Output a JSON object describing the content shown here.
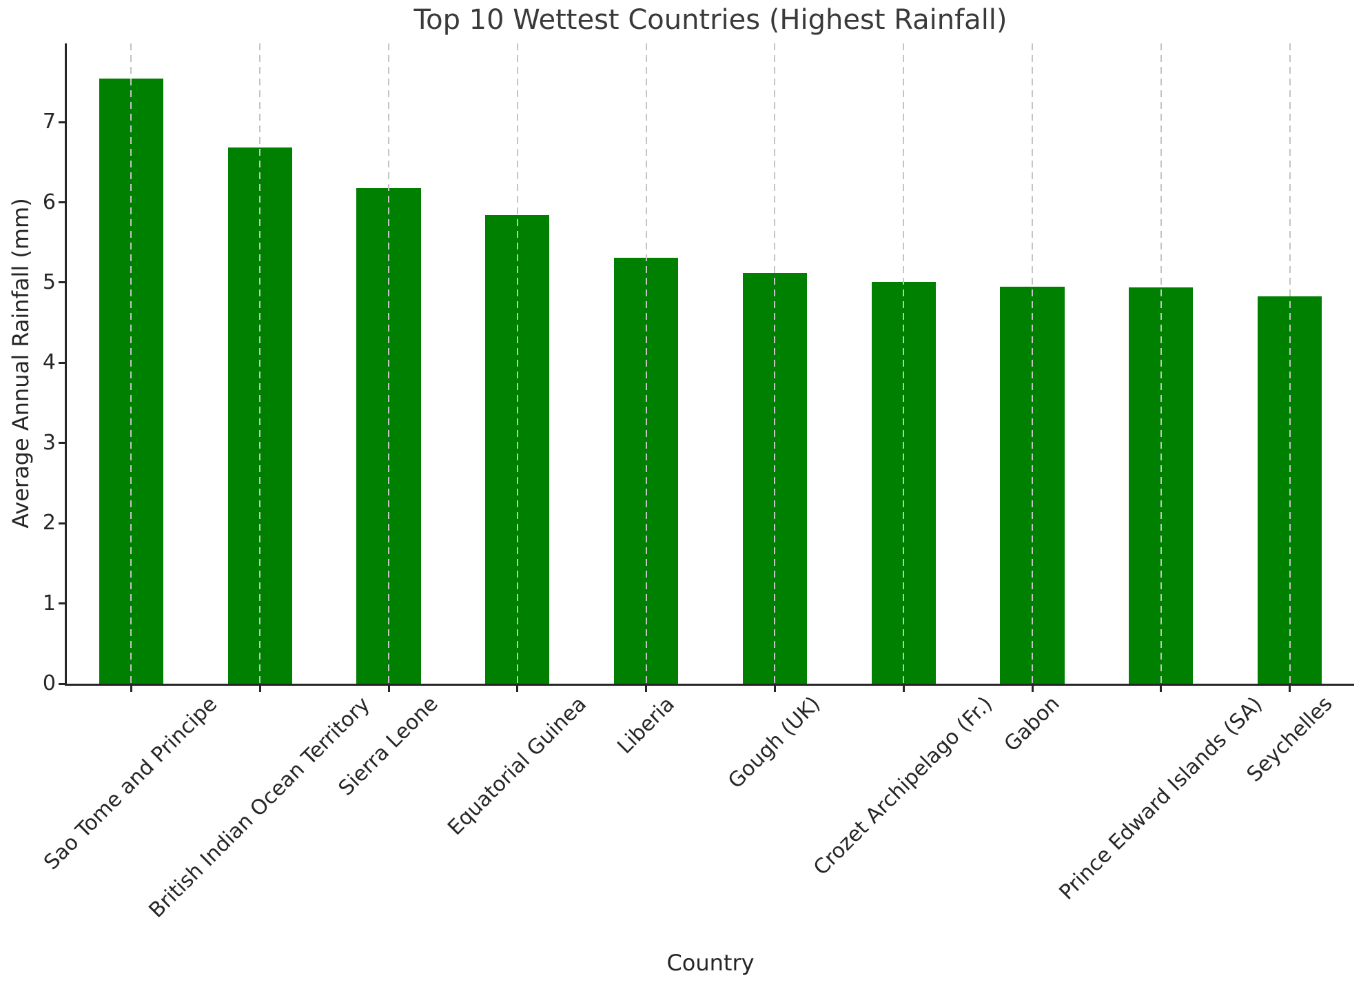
{
  "chart_data": {
    "type": "bar",
    "title": "Top 10 Wettest Countries (Highest Rainfall)",
    "xlabel": "Country",
    "ylabel": "Average Annual Rainfall (mm)",
    "categories": [
      "Sao Tome and Principe",
      "British Indian Ocean Territory",
      "Sierra Leone",
      "Equatorial Guinea",
      "Liberia",
      "Gough (UK)",
      "Crozet Archipelago (Fr.)",
      "Gabon",
      "Prince Edward Islands (SA)",
      "Seychelles"
    ],
    "values": [
      7.54,
      6.68,
      6.18,
      5.84,
      5.31,
      5.12,
      5.01,
      4.95,
      4.94,
      4.83
    ],
    "yticks": [
      0,
      1,
      2,
      3,
      4,
      5,
      6,
      7
    ],
    "ylim": [
      0,
      7.98
    ],
    "bar_color": "#008000",
    "gridline_color": "#c4c4c4",
    "axis_color": "#262626",
    "text_color": "#262626",
    "title_color": "#3a3a3a",
    "grid": "vertical-dashed",
    "legend": "none",
    "bar_width_fraction": 0.5,
    "tick_label_rotation_deg": 45
  }
}
